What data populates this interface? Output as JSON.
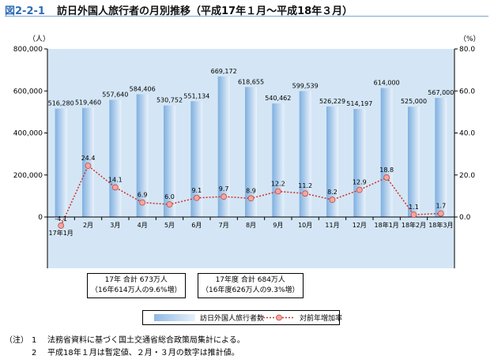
{
  "header": {
    "figure_number": "図2-2-1",
    "title": "訪日外国人旅行者の月別推移（平成17年１月〜平成18年３月）"
  },
  "chart_data": {
    "type": "bar",
    "categories": [
      "17年1月",
      "2月",
      "3月",
      "4月",
      "5月",
      "6月",
      "7月",
      "8月",
      "9月",
      "10月",
      "11月",
      "12月",
      "18年1月",
      "18年2月",
      "18年3月"
    ],
    "series": [
      {
        "name": "訪日外国人旅行者数",
        "type": "bar",
        "axis": "left",
        "values": [
          516280,
          519460,
          557640,
          584406,
          530752,
          551134,
          669172,
          618655,
          540462,
          599539,
          526229,
          514197,
          614000,
          525000,
          567000
        ],
        "labels": [
          "516,280",
          "519,460",
          "557,640",
          "584,406",
          "530,752",
          "551,134",
          "669,172",
          "618,655",
          "540,462",
          "599,539",
          "526,229",
          "514,197",
          "614,000",
          "525,000",
          "567,000"
        ]
      },
      {
        "name": "対前年増加率",
        "type": "line",
        "axis": "right",
        "values": [
          -4.1,
          24.4,
          14.1,
          6.9,
          6.0,
          9.1,
          9.7,
          8.9,
          12.2,
          11.2,
          8.2,
          12.9,
          18.8,
          1.1,
          1.7
        ],
        "labels": [
          "-4.1",
          "24.4",
          "14.1",
          "6.9",
          "6.0",
          "9.1",
          "9.7",
          "8.9",
          "12.2",
          "11.2",
          "8.2",
          "12.9",
          "18.8",
          "1.1",
          "1.7"
        ]
      }
    ],
    "y_left": {
      "unit": "（人）",
      "ylim": [
        0,
        800000
      ],
      "ticks": [
        0,
        200000,
        400000,
        600000,
        800000
      ],
      "tick_labels": [
        "0",
        "200,000",
        "400,000",
        "600,000",
        "800,000"
      ]
    },
    "y_right": {
      "unit": "（%）",
      "ylim": [
        0,
        80
      ],
      "ticks": [
        0,
        20,
        40,
        60,
        80
      ],
      "tick_labels": [
        "0.0",
        "20.0",
        "40.0",
        "60.0",
        "80.0"
      ]
    },
    "grid": false,
    "legend": "bottom-center",
    "colors": {
      "plot_bg": "#d4e6f5",
      "bar_dark": "#7fb0e0",
      "bar_light": "#eaf2fb",
      "line": "#d0302a",
      "marker_fill": "#f2a7a0"
    }
  },
  "summary_boxes": [
    {
      "line1": "17年 合計 673万人",
      "line2": "（16年614万人の9.6%増）"
    },
    {
      "line1": "17年度 合計 684万人",
      "line2": "（16年度626万人の9.3%増）"
    }
  ],
  "legend": {
    "bar_label": "訪日外国人旅行者数",
    "line_label": "対前年増加率"
  },
  "notes": {
    "head": "（注）",
    "items": [
      {
        "num": "1",
        "text": "法務省資料に基づく国土交通省総合政策局集計による。"
      },
      {
        "num": "2",
        "text": "平成18年１月は暫定値、２月・３月の数字は推計値。"
      }
    ]
  }
}
